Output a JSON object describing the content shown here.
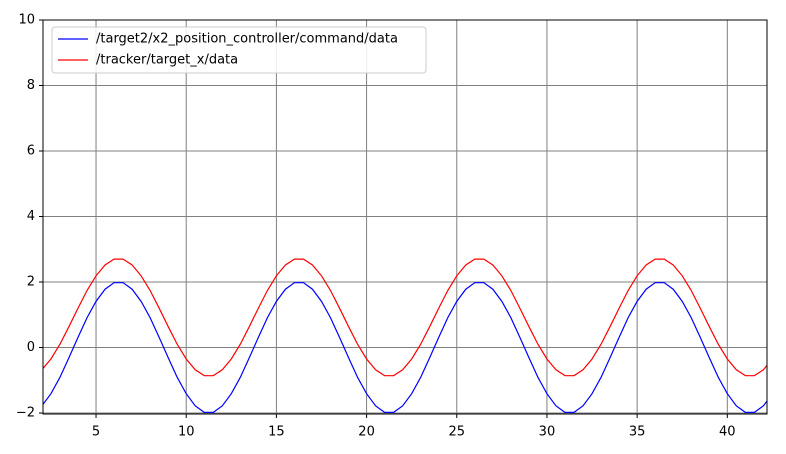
{
  "chart_data": {
    "type": "line",
    "x": [
      2,
      2.5,
      3,
      3.5,
      4,
      4.5,
      5,
      5.5,
      6,
      6.5,
      7,
      7.5,
      8,
      8.5,
      9,
      9.5,
      10,
      10.5,
      11,
      11.5,
      12,
      12.5,
      13,
      13.5,
      14,
      14.5,
      15,
      15.5,
      16,
      16.5,
      17,
      17.5,
      18,
      18.5,
      19,
      19.5,
      20,
      20.5,
      21,
      21.5,
      22,
      22.5,
      23,
      23.5,
      24,
      24.5,
      25,
      25.5,
      26,
      26.5,
      27,
      27.5,
      28,
      28.5,
      29,
      29.5,
      30,
      30.5,
      31,
      31.5,
      32,
      32.5,
      33,
      33.5,
      34,
      34.5,
      35,
      35.5,
      36,
      36.5,
      37,
      37.5,
      38,
      38.5,
      39,
      39.5,
      40,
      40.5,
      41,
      41.5,
      42,
      42.5
    ],
    "series": [
      {
        "name": "/target2/x2_position_controller/command/data",
        "color": "#0000ff",
        "values": [
          -1.78,
          -1.41,
          -0.91,
          -0.31,
          0.31,
          0.91,
          1.41,
          1.78,
          1.98,
          1.98,
          1.78,
          1.41,
          0.91,
          0.31,
          -0.31,
          -0.91,
          -1.41,
          -1.78,
          -1.98,
          -1.98,
          -1.78,
          -1.41,
          -0.91,
          -0.31,
          0.31,
          0.91,
          1.41,
          1.78,
          1.98,
          1.98,
          1.78,
          1.41,
          0.91,
          0.31,
          -0.31,
          -0.91,
          -1.41,
          -1.78,
          -1.98,
          -1.98,
          -1.78,
          -1.41,
          -0.91,
          -0.31,
          0.31,
          0.91,
          1.41,
          1.78,
          1.98,
          1.98,
          1.78,
          1.41,
          0.91,
          0.31,
          -0.31,
          -0.91,
          -1.41,
          -1.78,
          -1.98,
          -1.98,
          -1.78,
          -1.41,
          -0.91,
          -0.31,
          0.31,
          0.91,
          1.41,
          1.78,
          1.98,
          1.98,
          1.78,
          1.41,
          0.91,
          0.31,
          -0.31,
          -0.91,
          -1.41,
          -1.78,
          -1.98,
          -1.98,
          -1.78,
          -1.41
        ]
      },
      {
        "name": "/tracker/target_x/data",
        "color": "#ff0000",
        "values": [
          -0.68,
          -0.35,
          0.1,
          0.64,
          1.2,
          1.74,
          2.19,
          2.52,
          2.7,
          2.7,
          2.52,
          2.19,
          1.74,
          1.2,
          0.64,
          0.1,
          -0.35,
          -0.68,
          -0.86,
          -0.86,
          -0.68,
          -0.35,
          0.1,
          0.64,
          1.2,
          1.74,
          2.19,
          2.52,
          2.7,
          2.7,
          2.52,
          2.19,
          1.74,
          1.2,
          0.64,
          0.1,
          -0.35,
          -0.68,
          -0.86,
          -0.86,
          -0.68,
          -0.35,
          0.1,
          0.64,
          1.2,
          1.74,
          2.19,
          2.52,
          2.7,
          2.7,
          2.52,
          2.19,
          1.74,
          1.2,
          0.64,
          0.1,
          -0.35,
          -0.68,
          -0.86,
          -0.86,
          -0.68,
          -0.35,
          0.1,
          0.64,
          1.2,
          1.74,
          2.19,
          2.52,
          2.7,
          2.7,
          2.52,
          2.19,
          1.74,
          1.2,
          0.64,
          0.1,
          -0.35,
          -0.68,
          -0.86,
          -0.86,
          -0.68,
          -0.35
        ]
      }
    ],
    "xlim": [
      2.06,
      42.2
    ],
    "xticks": [
      5,
      10,
      15,
      20,
      25,
      30,
      35,
      40
    ],
    "ylim": [
      -2.03,
      10
    ],
    "yticks": [
      {
        "value": -2,
        "label": "−2"
      },
      0,
      2,
      4,
      6,
      8,
      10
    ],
    "grid": true,
    "legend": "upper left"
  }
}
